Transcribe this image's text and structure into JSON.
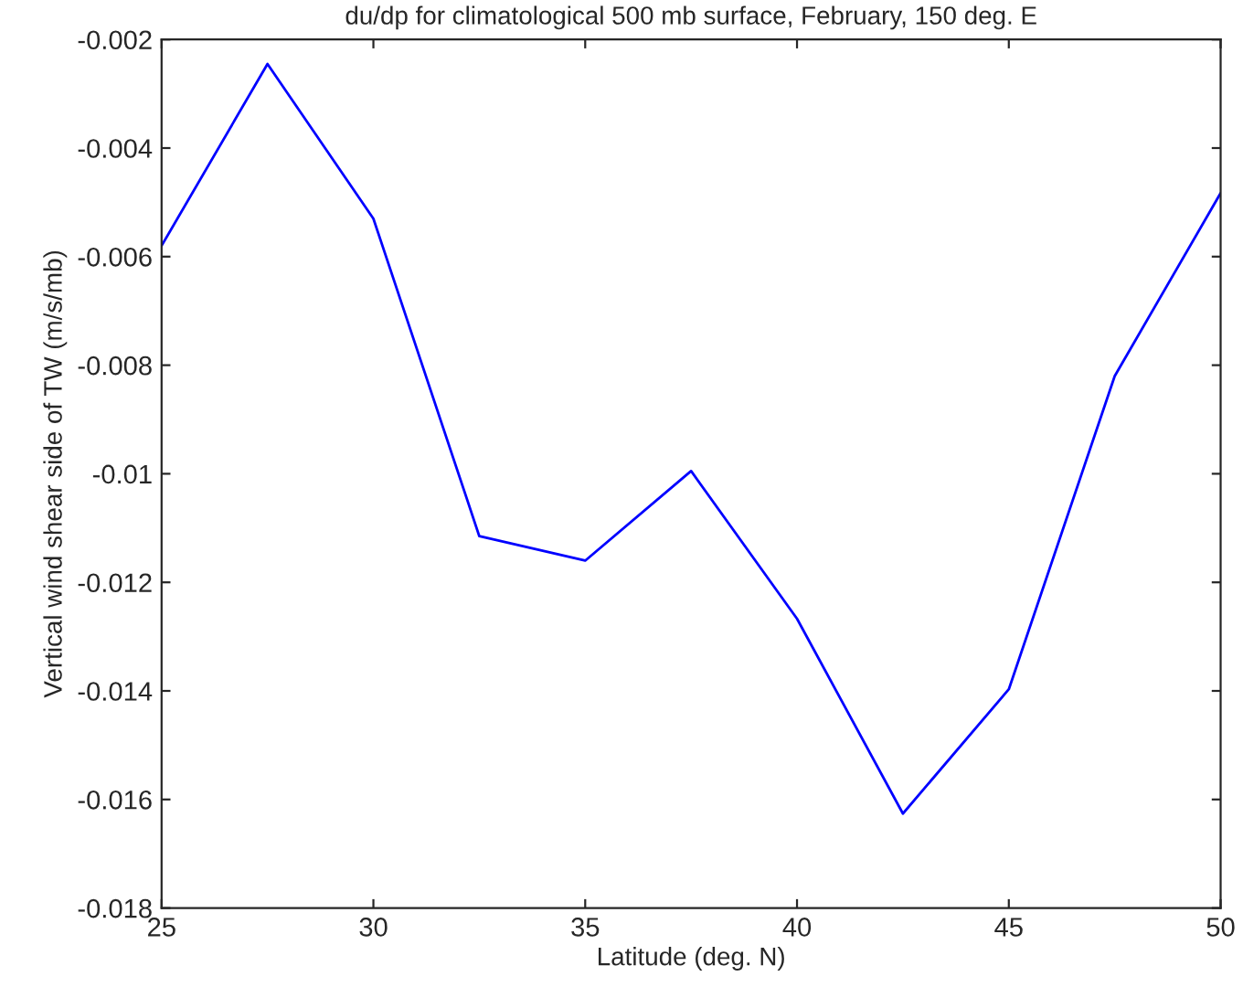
{
  "chart_data": {
    "type": "line",
    "title": "du/dp for climatological 500 mb surface, February, 150 deg. E",
    "xlabel": "Latitude (deg. N)",
    "ylabel": "Vertical wind shear side of TW (m/s/mb)",
    "x": [
      25,
      27.5,
      30,
      32.5,
      35,
      37.5,
      40,
      42.5,
      45,
      47.5,
      50
    ],
    "series": [
      {
        "color": "#0000ff",
        "values": [
          -0.0058,
          -0.00245,
          -0.0053,
          -0.01115,
          -0.0116,
          -0.00995,
          -0.01267,
          -0.01626,
          -0.01397,
          -0.0082,
          -0.00483
        ]
      }
    ],
    "xlim": [
      25,
      50
    ],
    "xticks": [
      25,
      30,
      35,
      40,
      45,
      50
    ],
    "ylim": [
      -0.018,
      -0.002
    ],
    "yticks": [
      -0.018,
      -0.016,
      -0.014,
      -0.012,
      -0.01,
      -0.008,
      -0.006,
      -0.004,
      -0.002
    ],
    "grid": false,
    "marker": "none",
    "line_style": "solid"
  }
}
